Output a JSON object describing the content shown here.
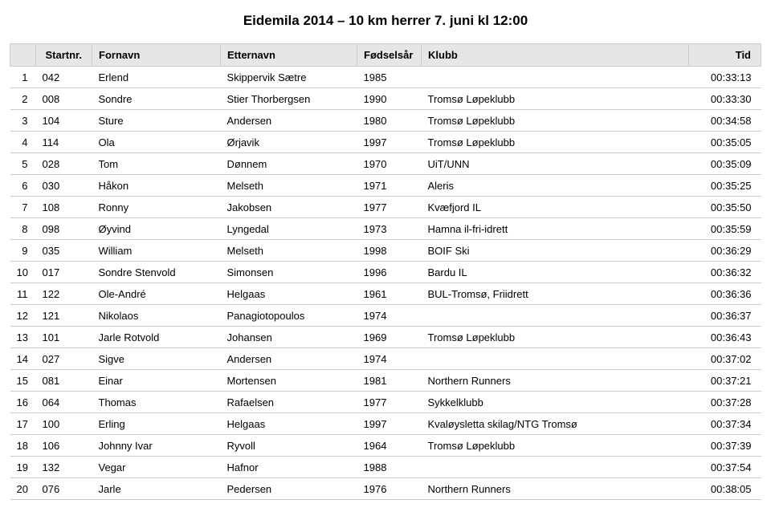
{
  "title": "Eidemila 2014 – 10 km herrer 7. juni kl 12:00",
  "columns": {
    "c0": "",
    "c1": "Startnr.",
    "c2": "Fornavn",
    "c3": "Etternavn",
    "c4": "Fødselsår",
    "c5": "Klubb",
    "c6": "Tid"
  },
  "rows": [
    {
      "rank": "1",
      "startnr": "042",
      "fornavn": "Erlend",
      "etternavn": "Skippervik Sætre",
      "ar": "1985",
      "klubb": "",
      "tid": "00:33:13"
    },
    {
      "rank": "2",
      "startnr": "008",
      "fornavn": "Sondre",
      "etternavn": "Stier Thorbergsen",
      "ar": "1990",
      "klubb": "Tromsø Løpeklubb",
      "tid": "00:33:30"
    },
    {
      "rank": "3",
      "startnr": "104",
      "fornavn": "Sture",
      "etternavn": "Andersen",
      "ar": "1980",
      "klubb": "Tromsø Løpeklubb",
      "tid": "00:34:58"
    },
    {
      "rank": "4",
      "startnr": "114",
      "fornavn": "Ola",
      "etternavn": "Ørjavik",
      "ar": "1997",
      "klubb": "Tromsø Løpeklubb",
      "tid": "00:35:05"
    },
    {
      "rank": "5",
      "startnr": "028",
      "fornavn": "Tom",
      "etternavn": "Dønnem",
      "ar": "1970",
      "klubb": "UiT/UNN",
      "tid": "00:35:09"
    },
    {
      "rank": "6",
      "startnr": "030",
      "fornavn": "Håkon",
      "etternavn": "Melseth",
      "ar": "1971",
      "klubb": "Aleris",
      "tid": "00:35:25"
    },
    {
      "rank": "7",
      "startnr": "108",
      "fornavn": "Ronny",
      "etternavn": "Jakobsen",
      "ar": "1977",
      "klubb": "Kvæfjord IL",
      "tid": "00:35:50"
    },
    {
      "rank": "8",
      "startnr": "098",
      "fornavn": "Øyvind",
      "etternavn": "Lyngedal",
      "ar": "1973",
      "klubb": "Hamna il-fri-idrett",
      "tid": "00:35:59"
    },
    {
      "rank": "9",
      "startnr": "035",
      "fornavn": "William",
      "etternavn": "Melseth",
      "ar": "1998",
      "klubb": "BOIF Ski",
      "tid": "00:36:29"
    },
    {
      "rank": "10",
      "startnr": "017",
      "fornavn": "Sondre Stenvold",
      "etternavn": "Simonsen",
      "ar": "1996",
      "klubb": "Bardu IL",
      "tid": "00:36:32"
    },
    {
      "rank": "11",
      "startnr": "122",
      "fornavn": "Ole-André",
      "etternavn": "Helgaas",
      "ar": "1961",
      "klubb": "BUL-Tromsø, Friidrett",
      "tid": "00:36:36"
    },
    {
      "rank": "12",
      "startnr": "121",
      "fornavn": "Nikolaos",
      "etternavn": "Panagiotopoulos",
      "ar": "1974",
      "klubb": "",
      "tid": "00:36:37"
    },
    {
      "rank": "13",
      "startnr": "101",
      "fornavn": "Jarle Rotvold",
      "etternavn": "Johansen",
      "ar": "1969",
      "klubb": "Tromsø Løpeklubb",
      "tid": "00:36:43"
    },
    {
      "rank": "14",
      "startnr": "027",
      "fornavn": "Sigve",
      "etternavn": "Andersen",
      "ar": "1974",
      "klubb": "",
      "tid": "00:37:02"
    },
    {
      "rank": "15",
      "startnr": "081",
      "fornavn": "Einar",
      "etternavn": "Mortensen",
      "ar": "1981",
      "klubb": "Northern Runners",
      "tid": "00:37:21"
    },
    {
      "rank": "16",
      "startnr": "064",
      "fornavn": "Thomas",
      "etternavn": "Rafaelsen",
      "ar": "1977",
      "klubb": "Sykkelklubb",
      "tid": "00:37:28"
    },
    {
      "rank": "17",
      "startnr": "100",
      "fornavn": "Erling",
      "etternavn": "Helgaas",
      "ar": "1997",
      "klubb": "Kvaløysletta skilag/NTG Tromsø",
      "tid": "00:37:34"
    },
    {
      "rank": "18",
      "startnr": "106",
      "fornavn": "Johnny Ivar",
      "etternavn": "Ryvoll",
      "ar": "1964",
      "klubb": "Tromsø Løpeklubb",
      "tid": "00:37:39"
    },
    {
      "rank": "19",
      "startnr": "132",
      "fornavn": "Vegar",
      "etternavn": "Hafnor",
      "ar": "1988",
      "klubb": "",
      "tid": "00:37:54"
    },
    {
      "rank": "20",
      "startnr": "076",
      "fornavn": "Jarle",
      "etternavn": "Pedersen",
      "ar": "1976",
      "klubb": "Northern Runners",
      "tid": "00:38:05"
    }
  ]
}
